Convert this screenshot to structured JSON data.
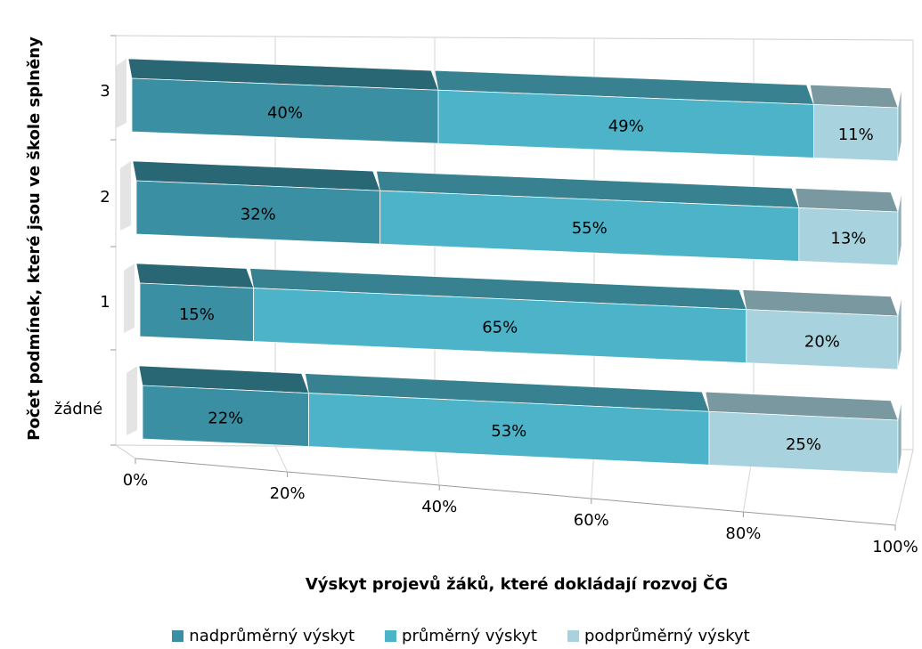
{
  "chart_data": {
    "type": "bar",
    "orientation": "horizontal",
    "stacked": "100%",
    "three_d": true,
    "categories": [
      "žádné",
      "1",
      "2",
      "3"
    ],
    "series": [
      {
        "name": "nadprůměrný výskyt",
        "values": [
          22,
          15,
          32,
          40
        ],
        "color": "#3a8fa3"
      },
      {
        "name": "průměrný výskyt",
        "values": [
          53,
          65,
          55,
          49
        ],
        "color": "#4db3c9"
      },
      {
        "name": "podprůměrný výskyt",
        "values": [
          25,
          20,
          13,
          11
        ],
        "color": "#a8d3de"
      }
    ],
    "data_labels": {
      "žádné": [
        "22%",
        "53%",
        "25%"
      ],
      "1": [
        "15%",
        "65%",
        "20%"
      ],
      "2": [
        "32%",
        "55%",
        "13%"
      ],
      "3": [
        "40%",
        "49%",
        "11%"
      ]
    },
    "x_ticks": [
      "0%",
      "20%",
      "40%",
      "60%",
      "80%",
      "100%"
    ],
    "xlim": [
      0,
      100
    ],
    "xlabel": "Výskyt projevů žáků, které dokládají rozvoj ČG",
    "ylabel": "Počet podmínek, které jsou ve škole splněny",
    "grid": true,
    "legend_position": "bottom"
  }
}
